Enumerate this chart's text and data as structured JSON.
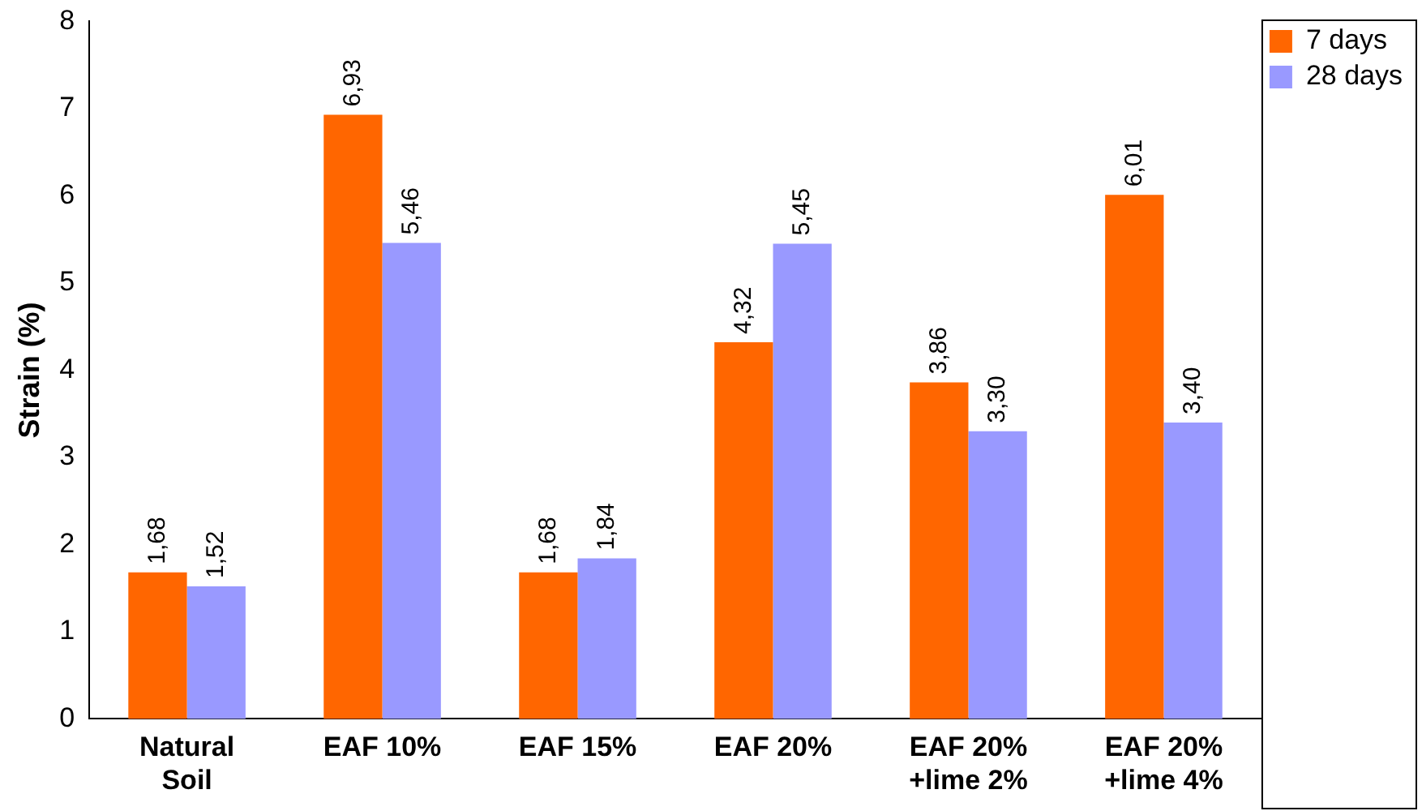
{
  "chart_data": {
    "type": "bar",
    "ylabel": "Strain (%)",
    "categories": [
      "Natural\nSoil",
      "EAF 10%",
      "EAF 15%",
      "EAF 20%",
      "EAF 20%\n+lime 2%",
      "EAF 20%\n+lime 4%"
    ],
    "series": [
      {
        "name": "7 days",
        "color": "#ff6600",
        "values": [
          1.68,
          6.93,
          1.68,
          4.32,
          3.86,
          6.01
        ],
        "value_labels": [
          "1,68",
          "6,93",
          "1,68",
          "4,32",
          "3,86",
          "6,01"
        ]
      },
      {
        "name": "28 days",
        "color": "#9999ff",
        "values": [
          1.52,
          5.46,
          1.84,
          5.45,
          3.3,
          3.4
        ],
        "value_labels": [
          "1,52",
          "5,46",
          "1,84",
          "5,45",
          "3,30",
          "3,40"
        ]
      }
    ],
    "ylim": [
      0,
      8
    ],
    "yticks": [
      0,
      1,
      2,
      3,
      4,
      5,
      6,
      7,
      8
    ],
    "grid": false,
    "legend": "top right"
  }
}
